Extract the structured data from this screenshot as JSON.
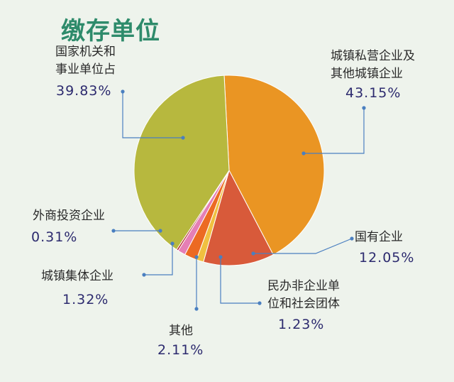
{
  "chart_data": {
    "type": "pie",
    "title": "缴存单位",
    "slices": [
      {
        "label": "城镇私营企业及其他城镇企业",
        "label_lines": [
          "城镇私营企业及",
          "其他城镇企业"
        ],
        "value": 43.15,
        "display": "43.15%",
        "color": "#ea9523"
      },
      {
        "label": "国有企业",
        "label_lines": [
          "国有企业"
        ],
        "value": 12.05,
        "display": "12.05%",
        "color": "#d85a3a"
      },
      {
        "label": "民办非企业单位和社会团体",
        "label_lines": [
          "民办非企业单",
          "位和社会团体"
        ],
        "value": 1.23,
        "display": "1.23%",
        "color": "#f0c040"
      },
      {
        "label": "其他",
        "label_lines": [
          "其他"
        ],
        "value": 2.11,
        "display": "2.11%",
        "color": "#ec6a22"
      },
      {
        "label": "城镇集体企业",
        "label_lines": [
          "城镇集体企业"
        ],
        "value": 1.32,
        "display": "1.32%",
        "color": "#e57fb5"
      },
      {
        "label": "外商投资企业",
        "label_lines": [
          "外商投资企业"
        ],
        "value": 0.31,
        "display": "0.31%",
        "color": "#b5202a"
      },
      {
        "label": "国家机关和事业单位占",
        "label_lines": [
          "国家机关和",
          "事业单位占"
        ],
        "value": 39.83,
        "display": "39.83%",
        "color": "#b7b83e"
      }
    ],
    "legend": "none",
    "grid": false
  }
}
